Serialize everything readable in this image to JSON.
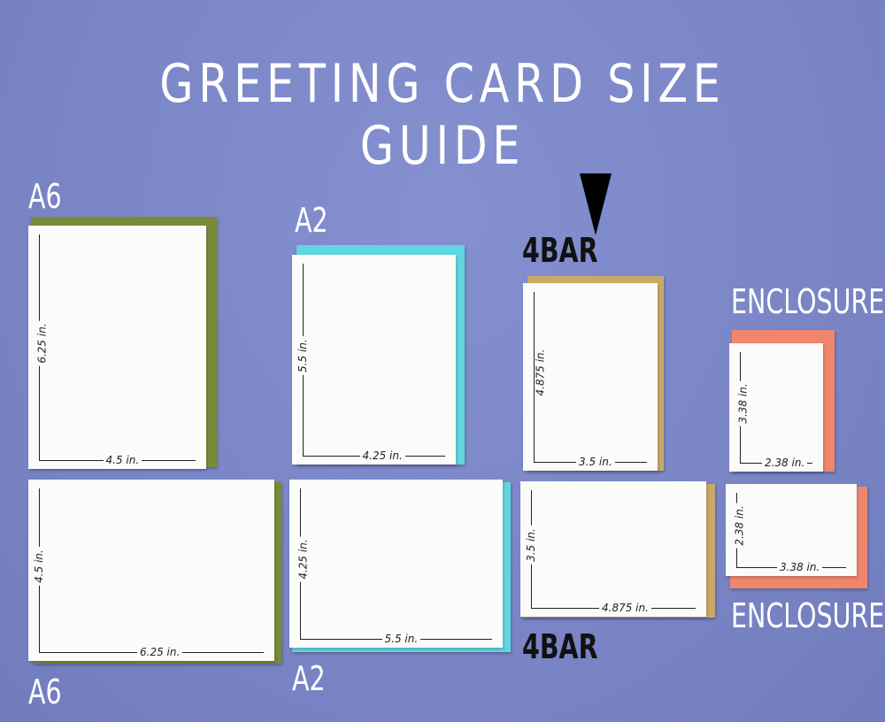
{
  "title": "GREETING CARD SIZE GUIDE",
  "pointer_icon": "down-triangle-icon",
  "colors": {
    "background": "#7c87c9",
    "a6_envelope": "#7a8a3a",
    "a2_envelope": "#5fd6e0",
    "4bar_envelope": "#c9a96a",
    "enclosure_envelope": "#f0866c",
    "card": "#fbfbf9"
  },
  "cards": [
    {
      "label": "A6",
      "orientation": "portrait",
      "height_label": "6.25 in.",
      "width_label": "4.5 in."
    },
    {
      "label": "A2",
      "orientation": "portrait",
      "height_label": "5.5 in.",
      "width_label": "4.25 in."
    },
    {
      "label": "4BAR",
      "orientation": "portrait",
      "height_label": "4.875 in.",
      "width_label": "3.5 in."
    },
    {
      "label": "ENCLOSURE",
      "orientation": "portrait",
      "height_label": "3.38 in.",
      "width_label": "2.38 in."
    },
    {
      "label": "A6",
      "orientation": "landscape",
      "height_label": "4.5 in.",
      "width_label": "6.25 in."
    },
    {
      "label": "A2",
      "orientation": "landscape",
      "height_label": "4.25 in.",
      "width_label": "5.5 in."
    },
    {
      "label": "4BAR",
      "orientation": "landscape",
      "height_label": "3.5 in.",
      "width_label": "4.875 in."
    },
    {
      "label": "ENCLOSURE",
      "orientation": "landscape",
      "height_label": "2.38 in.",
      "width_label": "3.38 in."
    }
  ]
}
